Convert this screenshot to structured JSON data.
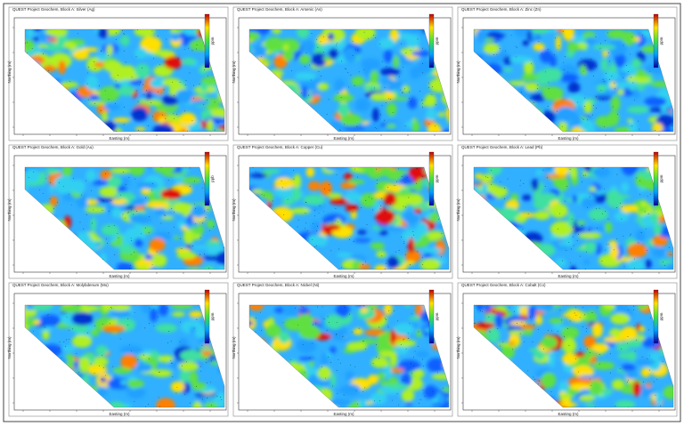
{
  "panels": [
    {
      "title": "QUEST Project Geochem, Block A: Silver (Ag)",
      "x_label": "Easting (m)",
      "y_label": "Northing (m)",
      "unit": "ppm"
    },
    {
      "title": "QUEST Project Geochem, Block A: Arsenic (As)",
      "x_label": "Easting (m)",
      "y_label": "Northing (m)",
      "unit": "ppm"
    },
    {
      "title": "QUEST Project Geochem, Block A: Zinc (Zn)",
      "x_label": "Easting (m)",
      "y_label": "Northing (m)",
      "unit": "ppm"
    },
    {
      "title": "QUEST Project Geochem, Block A: Gold (Au)",
      "x_label": "Easting (m)",
      "y_label": "Northing (m)",
      "unit": "ppb"
    },
    {
      "title": "QUEST Project Geochem, Block A: Copper (Cu)",
      "x_label": "Easting (m)",
      "y_label": "Northing (m)",
      "unit": "ppm"
    },
    {
      "title": "QUEST Project Geochem, Block A: Lead (Pb)",
      "x_label": "Easting (m)",
      "y_label": "Northing (m)",
      "unit": "ppm"
    },
    {
      "title": "QUEST Project Geochem, Block A: Molybdenum (Mo)",
      "x_label": "Easting (m)",
      "y_label": "Northing (m)",
      "unit": "ppm"
    },
    {
      "title": "QUEST Project Geochem, Block A: Nickel (Ni)",
      "x_label": "Easting (m)",
      "y_label": "Northing (m)",
      "unit": "ppm"
    },
    {
      "title": "QUEST Project Geochem, Block A: Cobalt (Co)",
      "x_label": "Easting (m)",
      "y_label": "Northing (m)",
      "unit": "ppm"
    }
  ]
}
